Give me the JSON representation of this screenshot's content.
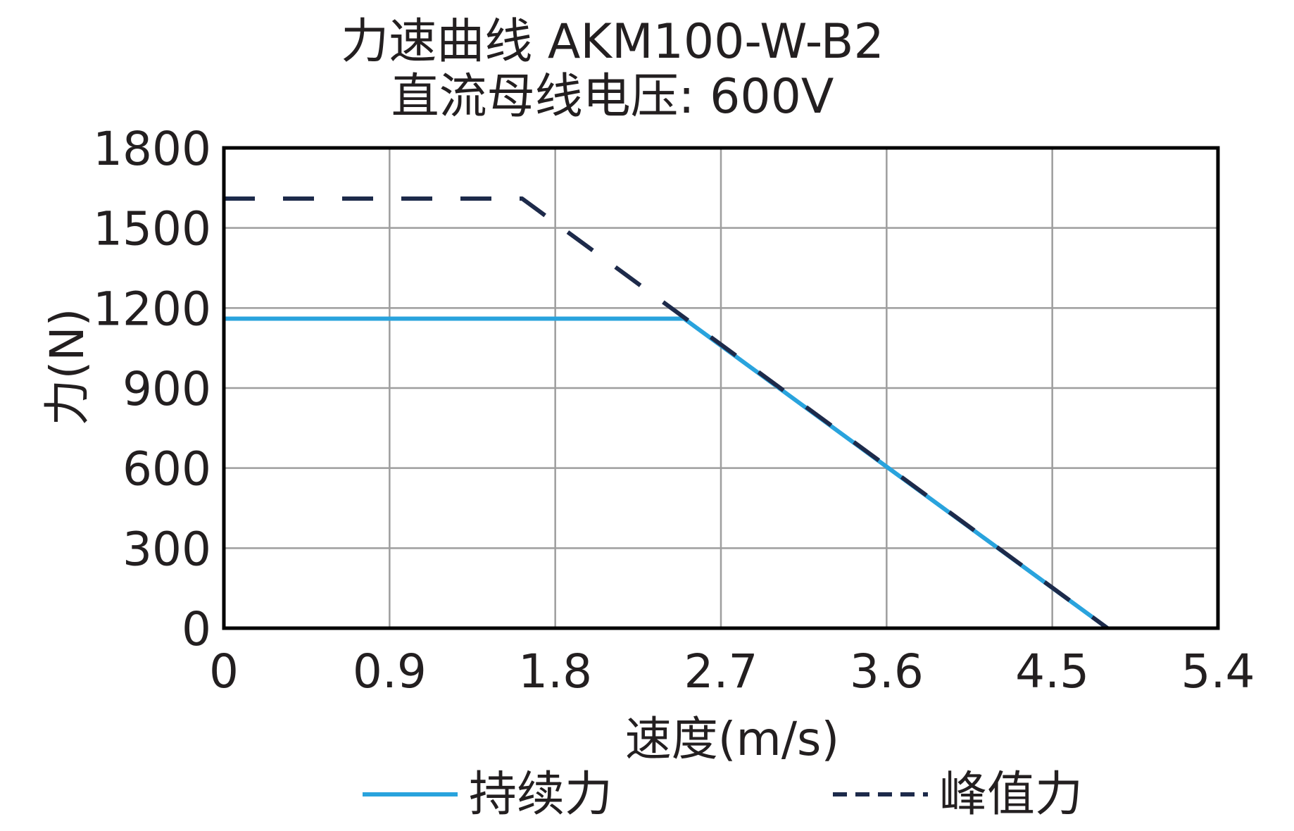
{
  "chart_data": {
    "type": "line",
    "title": "力速曲线 AKM100-W-B2",
    "subtitle": "直流母线电压: 600V",
    "xlabel": "速度(m/s)",
    "ylabel": "力(N)",
    "xlim": [
      0,
      5.4
    ],
    "ylim": [
      0,
      1800
    ],
    "xticks": [
      "0",
      "0.9",
      "1.8",
      "2.7",
      "3.6",
      "4.5",
      "5.4"
    ],
    "yticks": [
      "0",
      "300",
      "600",
      "900",
      "1200",
      "1500",
      "1800"
    ],
    "grid": true,
    "legend_position": "bottom",
    "series": [
      {
        "name": "持续力",
        "style": "solid",
        "color": "#29a3dd",
        "points": [
          [
            0,
            1160
          ],
          [
            2.5,
            1160
          ],
          [
            4.8,
            0
          ]
        ]
      },
      {
        "name": "峰值力",
        "style": "dashed",
        "color": "#1d2a4a",
        "points": [
          [
            0,
            1610
          ],
          [
            1.62,
            1610
          ],
          [
            4.8,
            0
          ]
        ]
      }
    ]
  }
}
